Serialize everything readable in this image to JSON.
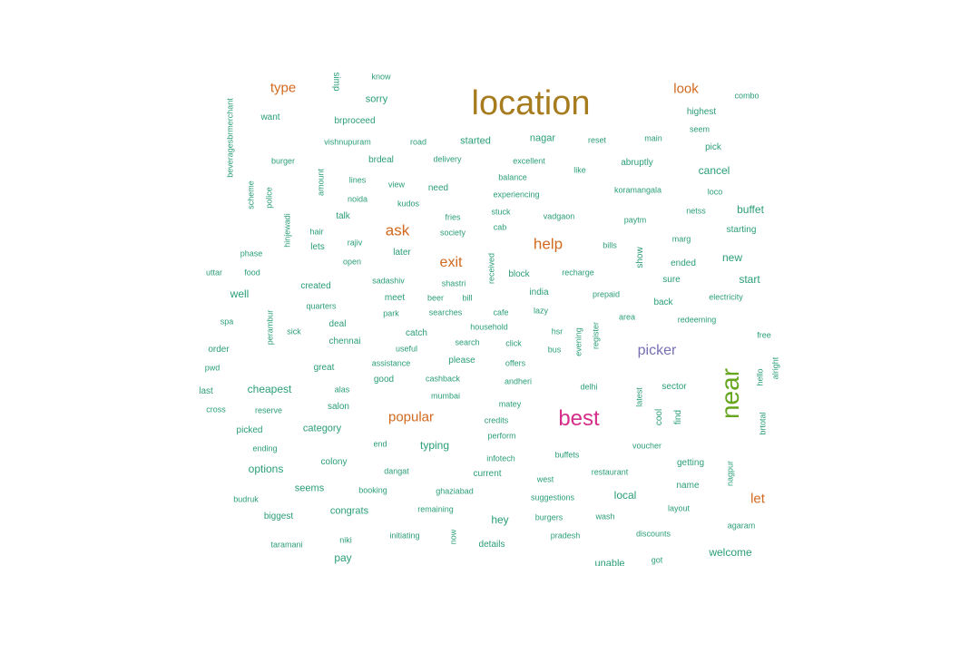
{
  "cloud": {
    "colors": {
      "teal": "#2a9d78",
      "orange": "#d2691e",
      "gold": "#a67c1e",
      "magenta": "#d62e8a",
      "purple": "#7570b3",
      "green": "#66a61e"
    },
    "words": [
      {
        "text": "location",
        "color": "gold"
      },
      {
        "text": "best",
        "color": "magenta"
      },
      {
        "text": "near",
        "color": "green"
      },
      {
        "text": "picker",
        "color": "purple"
      },
      {
        "text": "help",
        "color": "orange"
      },
      {
        "text": "ask",
        "color": "orange"
      },
      {
        "text": "exit",
        "color": "orange"
      },
      {
        "text": "popular",
        "color": "orange"
      },
      {
        "text": "type",
        "color": "orange"
      },
      {
        "text": "look",
        "color": "orange"
      },
      {
        "text": "let",
        "color": "orange"
      },
      {
        "text": "cancel",
        "color": "teal"
      },
      {
        "text": "buffet",
        "color": "teal"
      },
      {
        "text": "start",
        "color": "teal"
      },
      {
        "text": "new",
        "color": "teal"
      },
      {
        "text": "local",
        "color": "teal"
      },
      {
        "text": "typing",
        "color": "teal"
      },
      {
        "text": "cheapest",
        "color": "teal"
      },
      {
        "text": "options",
        "color": "teal"
      },
      {
        "text": "welcome",
        "color": "teal"
      },
      {
        "text": "hey",
        "color": "teal"
      },
      {
        "text": "pay",
        "color": "teal"
      },
      {
        "text": "well",
        "color": "teal"
      },
      {
        "text": "sorry",
        "color": "teal"
      },
      {
        "text": "started",
        "color": "teal"
      },
      {
        "text": "nagar",
        "color": "teal"
      },
      {
        "text": "category",
        "color": "teal"
      },
      {
        "text": "seems",
        "color": "teal"
      },
      {
        "text": "congrats",
        "color": "teal"
      },
      {
        "text": "want",
        "color": "teal"
      },
      {
        "text": "brproceed",
        "color": "teal"
      },
      {
        "text": "vishnupuram",
        "color": "teal"
      },
      {
        "text": "road",
        "color": "teal"
      },
      {
        "text": "reset",
        "color": "teal"
      },
      {
        "text": "main",
        "color": "teal"
      },
      {
        "text": "highest",
        "color": "teal"
      },
      {
        "text": "seem",
        "color": "teal"
      },
      {
        "text": "pick",
        "color": "teal"
      },
      {
        "text": "combo",
        "color": "teal"
      },
      {
        "text": "know",
        "color": "teal"
      },
      {
        "text": "burger",
        "color": "teal"
      },
      {
        "text": "brdeal",
        "color": "teal"
      },
      {
        "text": "delivery",
        "color": "teal"
      },
      {
        "text": "excellent",
        "color": "teal"
      },
      {
        "text": "abruptly",
        "color": "teal"
      },
      {
        "text": "balance",
        "color": "teal"
      },
      {
        "text": "like",
        "color": "teal"
      },
      {
        "text": "lines",
        "color": "teal"
      },
      {
        "text": "view",
        "color": "teal"
      },
      {
        "text": "need",
        "color": "teal"
      },
      {
        "text": "experiencing",
        "color": "teal"
      },
      {
        "text": "koramangala",
        "color": "teal"
      },
      {
        "text": "loco",
        "color": "teal"
      },
      {
        "text": "noida",
        "color": "teal"
      },
      {
        "text": "kudos",
        "color": "teal"
      },
      {
        "text": "talk",
        "color": "teal"
      },
      {
        "text": "fries",
        "color": "teal"
      },
      {
        "text": "stuck",
        "color": "teal"
      },
      {
        "text": "vadgaon",
        "color": "teal"
      },
      {
        "text": "paytm",
        "color": "teal"
      },
      {
        "text": "netss",
        "color": "teal"
      },
      {
        "text": "hair",
        "color": "teal"
      },
      {
        "text": "society",
        "color": "teal"
      },
      {
        "text": "cab",
        "color": "teal"
      },
      {
        "text": "starting",
        "color": "teal"
      },
      {
        "text": "lets",
        "color": "teal"
      },
      {
        "text": "rajiv",
        "color": "teal"
      },
      {
        "text": "bills",
        "color": "teal"
      },
      {
        "text": "marg",
        "color": "teal"
      },
      {
        "text": "phase",
        "color": "teal"
      },
      {
        "text": "later",
        "color": "teal"
      },
      {
        "text": "ended",
        "color": "teal"
      },
      {
        "text": "open",
        "color": "teal"
      },
      {
        "text": "uttar",
        "color": "teal"
      },
      {
        "text": "food",
        "color": "teal"
      },
      {
        "text": "block",
        "color": "teal"
      },
      {
        "text": "recharge",
        "color": "teal"
      },
      {
        "text": "sadashiv",
        "color": "teal"
      },
      {
        "text": "shastri",
        "color": "teal"
      },
      {
        "text": "sure",
        "color": "teal"
      },
      {
        "text": "created",
        "color": "teal"
      },
      {
        "text": "india",
        "color": "teal"
      },
      {
        "text": "prepaid",
        "color": "teal"
      },
      {
        "text": "electricity",
        "color": "teal"
      },
      {
        "text": "meet",
        "color": "teal"
      },
      {
        "text": "beer",
        "color": "teal"
      },
      {
        "text": "bill",
        "color": "teal"
      },
      {
        "text": "back",
        "color": "teal"
      },
      {
        "text": "quarters",
        "color": "teal"
      },
      {
        "text": "park",
        "color": "teal"
      },
      {
        "text": "searches",
        "color": "teal"
      },
      {
        "text": "cafe",
        "color": "teal"
      },
      {
        "text": "lazy",
        "color": "teal"
      },
      {
        "text": "area",
        "color": "teal"
      },
      {
        "text": "redeeming",
        "color": "teal"
      },
      {
        "text": "spa",
        "color": "teal"
      },
      {
        "text": "deal",
        "color": "teal"
      },
      {
        "text": "household",
        "color": "teal"
      },
      {
        "text": "sick",
        "color": "teal"
      },
      {
        "text": "catch",
        "color": "teal"
      },
      {
        "text": "hsr",
        "color": "teal"
      },
      {
        "text": "free",
        "color": "teal"
      },
      {
        "text": "chennai",
        "color": "teal"
      },
      {
        "text": "search",
        "color": "teal"
      },
      {
        "text": "click",
        "color": "teal"
      },
      {
        "text": "order",
        "color": "teal"
      },
      {
        "text": "useful",
        "color": "teal"
      },
      {
        "text": "bus",
        "color": "teal"
      },
      {
        "text": "please",
        "color": "teal"
      },
      {
        "text": "pwd",
        "color": "teal"
      },
      {
        "text": "assistance",
        "color": "teal"
      },
      {
        "text": "offers",
        "color": "teal"
      },
      {
        "text": "great",
        "color": "teal"
      },
      {
        "text": "good",
        "color": "teal"
      },
      {
        "text": "cashback",
        "color": "teal"
      },
      {
        "text": "andheri",
        "color": "teal"
      },
      {
        "text": "sector",
        "color": "teal"
      },
      {
        "text": "last",
        "color": "teal"
      },
      {
        "text": "alas",
        "color": "teal"
      },
      {
        "text": "delhi",
        "color": "teal"
      },
      {
        "text": "mumbai",
        "color": "teal"
      },
      {
        "text": "salon",
        "color": "teal"
      },
      {
        "text": "matey",
        "color": "teal"
      },
      {
        "text": "cross",
        "color": "teal"
      },
      {
        "text": "reserve",
        "color": "teal"
      },
      {
        "text": "credits",
        "color": "teal"
      },
      {
        "text": "picked",
        "color": "teal"
      },
      {
        "text": "perform",
        "color": "teal"
      },
      {
        "text": "ending",
        "color": "teal"
      },
      {
        "text": "end",
        "color": "teal"
      },
      {
        "text": "voucher",
        "color": "teal"
      },
      {
        "text": "buffets",
        "color": "teal"
      },
      {
        "text": "infotech",
        "color": "teal"
      },
      {
        "text": "getting",
        "color": "teal"
      },
      {
        "text": "colony",
        "color": "teal"
      },
      {
        "text": "dangat",
        "color": "teal"
      },
      {
        "text": "current",
        "color": "teal"
      },
      {
        "text": "restaurant",
        "color": "teal"
      },
      {
        "text": "west",
        "color": "teal"
      },
      {
        "text": "name",
        "color": "teal"
      },
      {
        "text": "booking",
        "color": "teal"
      },
      {
        "text": "ghaziabad",
        "color": "teal"
      },
      {
        "text": "suggestions",
        "color": "teal"
      },
      {
        "text": "budruk",
        "color": "teal"
      },
      {
        "text": "layout",
        "color": "teal"
      },
      {
        "text": "remaining",
        "color": "teal"
      },
      {
        "text": "biggest",
        "color": "teal"
      },
      {
        "text": "burgers",
        "color": "teal"
      },
      {
        "text": "wash",
        "color": "teal"
      },
      {
        "text": "agaram",
        "color": "teal"
      },
      {
        "text": "initiating",
        "color": "teal"
      },
      {
        "text": "niki",
        "color": "teal"
      },
      {
        "text": "discounts",
        "color": "teal"
      },
      {
        "text": "pradesh",
        "color": "teal"
      },
      {
        "text": "taramani",
        "color": "teal"
      },
      {
        "text": "details",
        "color": "teal"
      },
      {
        "text": "got",
        "color": "teal"
      },
      {
        "text": "unable",
        "color": "teal"
      },
      {
        "text": "simp",
        "color": "teal"
      },
      {
        "text": "beveragesbrmerchant",
        "color": "teal"
      },
      {
        "text": "scheme",
        "color": "teal"
      },
      {
        "text": "police",
        "color": "teal"
      },
      {
        "text": "amount",
        "color": "teal"
      },
      {
        "text": "hinjewadi",
        "color": "teal"
      },
      {
        "text": "received",
        "color": "teal"
      },
      {
        "text": "show",
        "color": "teal"
      },
      {
        "text": "perambur",
        "color": "teal"
      },
      {
        "text": "evening",
        "color": "teal"
      },
      {
        "text": "register",
        "color": "teal"
      },
      {
        "text": "latest",
        "color": "teal"
      },
      {
        "text": "cool",
        "color": "teal"
      },
      {
        "text": "find",
        "color": "teal"
      },
      {
        "text": "hello",
        "color": "teal"
      },
      {
        "text": "alright",
        "color": "teal"
      },
      {
        "text": "brtotal",
        "color": "teal"
      },
      {
        "text": "nagpur",
        "color": "teal"
      },
      {
        "text": "now",
        "color": "teal"
      }
    ]
  }
}
